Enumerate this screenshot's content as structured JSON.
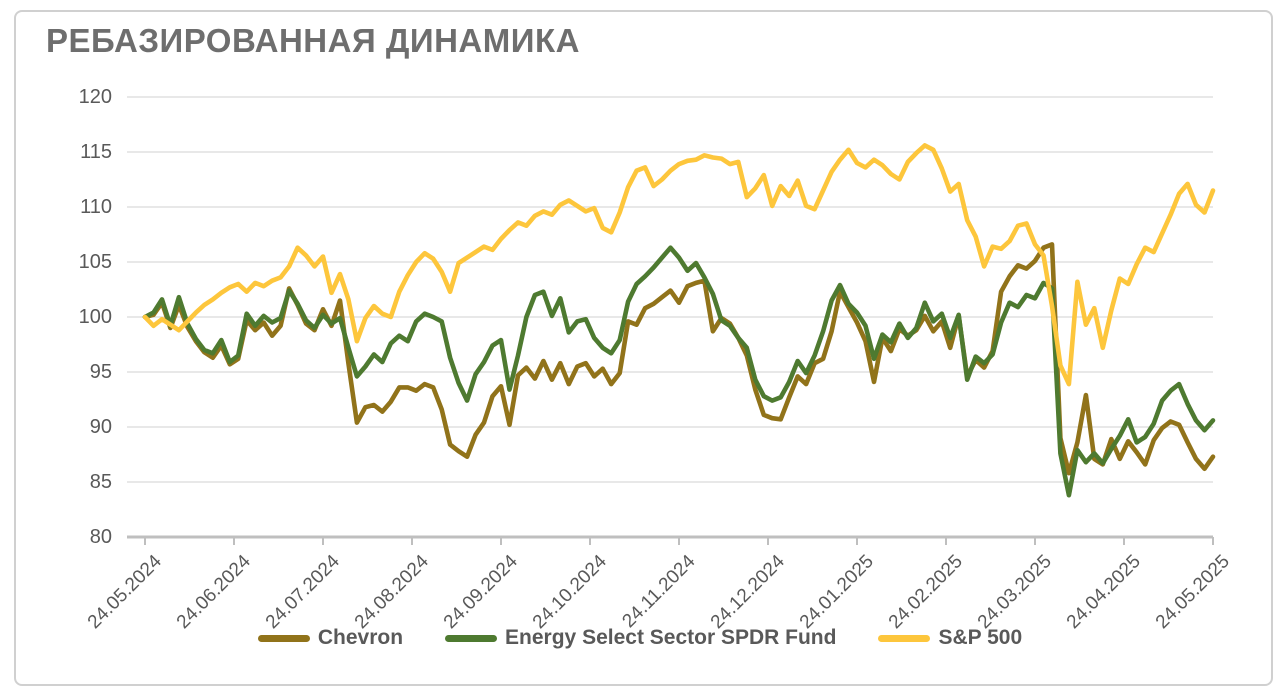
{
  "title": "РЕБАЗИРОВАННАЯ ДИНАМИКА",
  "colors": {
    "title_text": "#6E6E6E",
    "axis_text": "#595959",
    "gridline": "#D9D9D9",
    "axis_line": "#BFBFBF",
    "background": "#FFFFFF",
    "frame_border": "#D0D0D0",
    "chevron": "#91731A",
    "energy_spdr": "#4E7A30",
    "sp500": "#FDC63C"
  },
  "chart_data": {
    "type": "line",
    "title": "РЕБАЗИРОВАННАЯ ДИНАМИКА",
    "xlabel": "",
    "ylabel": "",
    "ylim": [
      80,
      120
    ],
    "y_ticks": [
      120,
      115,
      110,
      105,
      100,
      95,
      90,
      85,
      80
    ],
    "grid": "horizontal",
    "legend_position": "bottom",
    "x_tick_labels": [
      "24.05.2024",
      "24.06.2024",
      "24.07.2024",
      "24.08.2024",
      "24.09.2024",
      "24.10.2024",
      "24.11.2024",
      "24.12.2024",
      "24.01.2025",
      "24.02.2025",
      "24.03.2025",
      "24.04.2025",
      "24.05.2025"
    ],
    "x_range_note": "daily values rebased to 100 on 24.05.2024, plotted evenly from first to last tick",
    "series": [
      {
        "name": "Chevron",
        "color": "#91731A",
        "values": [
          100,
          100.2,
          101.3,
          99,
          101.1,
          99.1,
          97.8,
          96.8,
          96.3,
          97.4,
          95.7,
          96.2,
          99.7,
          98.8,
          99.5,
          98.3,
          99.2,
          102.6,
          101.1,
          99.4,
          98.8,
          100.7,
          99.2,
          101.5,
          95.8,
          90.4,
          91.8,
          92,
          91.4,
          92.3,
          93.6,
          93.6,
          93.3,
          93.9,
          93.6,
          91.6,
          88.4,
          87.8,
          87.3,
          89.3,
          90.4,
          92.8,
          93.7,
          90.2,
          94.7,
          95.4,
          94.4,
          96,
          94.3,
          95.8,
          93.9,
          95.5,
          95.8,
          94.6,
          95.3,
          93.9,
          94.9,
          99.6,
          99.3,
          100.8,
          101.2,
          101.8,
          102.4,
          101.3,
          102.8,
          103.1,
          103.3,
          98.7,
          99.9,
          99.4,
          98.1,
          96.5,
          93.4,
          91.1,
          90.8,
          90.7,
          92.7,
          94.6,
          93.9,
          95.8,
          96.2,
          98.7,
          102.3,
          100.9,
          99.5,
          97.8,
          94.1,
          98.1,
          96.9,
          98.9,
          98.3,
          98.8,
          100.1,
          98.7,
          99.6,
          97.2,
          100.1,
          94.6,
          96.1,
          95.4,
          96.9,
          102.3,
          103.7,
          104.7,
          104.4,
          105.1,
          106.3,
          106.6,
          89,
          85.8,
          88.6,
          92.9,
          87.1,
          86.6,
          88.9,
          87.1,
          88.7,
          87.7,
          86.6,
          88.8,
          89.9,
          90.5,
          90.2,
          88.6,
          87.1,
          86.2,
          87.3
        ]
      },
      {
        "name": "Energy Select Sector SPDR Fund",
        "color": "#4E7A30",
        "values": [
          100,
          100.4,
          101.6,
          99.2,
          101.8,
          99.4,
          98,
          97,
          96.7,
          97.9,
          95.9,
          96.5,
          100.3,
          99.2,
          100.1,
          99.5,
          99.9,
          102.4,
          101.2,
          99.7,
          99,
          100.2,
          99.4,
          99.9,
          97.2,
          94.6,
          95.5,
          96.6,
          95.9,
          97.6,
          98.3,
          97.8,
          99.6,
          100.3,
          100,
          99.6,
          96.3,
          94,
          92.4,
          94.8,
          95.9,
          97.4,
          97.9,
          93.4,
          96.5,
          100,
          102,
          102.3,
          100.1,
          101.7,
          98.6,
          99.6,
          99.8,
          98.1,
          97.2,
          96.7,
          97.9,
          101.4,
          103,
          103.7,
          104.5,
          105.4,
          106.3,
          105.4,
          104.2,
          104.9,
          103.6,
          102.1,
          99.7,
          99.2,
          98.1,
          97.2,
          94.3,
          92.8,
          92.4,
          92.7,
          94.1,
          96,
          94.9,
          96.5,
          98.7,
          101.5,
          102.9,
          101.2,
          100.4,
          99.2,
          96.2,
          98.4,
          97.7,
          99.4,
          98.1,
          99,
          101.3,
          99.6,
          100.3,
          98.1,
          100.2,
          94.3,
          96.4,
          95.8,
          96.6,
          99.5,
          101.3,
          100.9,
          102,
          101.7,
          103.1,
          102.6,
          87.6,
          83.8,
          87.9,
          86.8,
          87.6,
          86.7,
          88,
          89.2,
          90.7,
          88.6,
          89.1,
          90.3,
          92.4,
          93.3,
          93.9,
          92.1,
          90.6,
          89.7,
          90.6
        ]
      },
      {
        "name": "S&P 500",
        "color": "#FDC63C",
        "values": [
          100,
          99.2,
          99.8,
          99.3,
          98.8,
          99.6,
          100.4,
          101.1,
          101.6,
          102.2,
          102.7,
          103,
          102.3,
          103.1,
          102.8,
          103.3,
          103.6,
          104.6,
          106.3,
          105.6,
          104.6,
          105.5,
          102.2,
          103.9,
          101.6,
          97.8,
          99.9,
          101,
          100.3,
          100,
          102.3,
          103.8,
          105,
          105.8,
          105.3,
          104.1,
          102.3,
          104.9,
          105.4,
          105.9,
          106.4,
          106.1,
          107.1,
          107.9,
          108.6,
          108.3,
          109.2,
          109.6,
          109.3,
          110.2,
          110.6,
          110.1,
          109.6,
          109.9,
          108.1,
          107.7,
          109.5,
          111.8,
          113.3,
          113.6,
          111.9,
          112.5,
          113.3,
          113.9,
          114.2,
          114.3,
          114.7,
          114.5,
          114.4,
          113.9,
          114.1,
          110.9,
          111.7,
          112.9,
          110.1,
          111.9,
          111,
          112.4,
          110.1,
          109.8,
          111.5,
          113.2,
          114.3,
          115.2,
          114,
          113.6,
          114.3,
          113.8,
          113,
          112.5,
          114.1,
          114.9,
          115.6,
          115.2,
          113.5,
          111.4,
          112.1,
          108.8,
          107.3,
          104.6,
          106.4,
          106.2,
          106.9,
          108.3,
          108.5,
          106.6,
          105.6,
          101,
          95.6,
          93.9,
          103.2,
          99.3,
          100.8,
          97.2,
          100.6,
          103.5,
          103,
          104.8,
          106.3,
          105.9,
          107.6,
          109.3,
          111.2,
          112.1,
          110.2,
          109.5,
          111.5
        ]
      }
    ]
  }
}
